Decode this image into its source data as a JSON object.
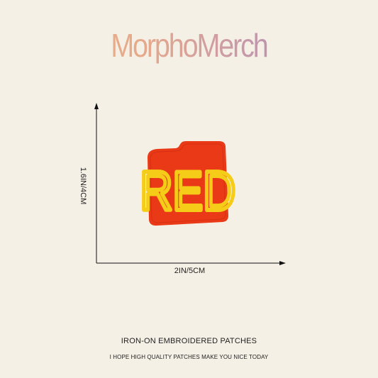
{
  "brand": {
    "name": "MorphoMerch"
  },
  "patch": {
    "text": "RED",
    "border_color": "#e63b17",
    "fill_color": "#ef3b1a",
    "text_color": "#f5cc18"
  },
  "dimensions": {
    "height_label": "1.6IN/4CM",
    "width_label": "2IN/5CM"
  },
  "footer": {
    "title": "IRON-ON EMBROIDERED PATCHES",
    "subtitle": "I HOPE HIGH QUALITY PATCHES MAKE YOU NICE TODAY"
  }
}
